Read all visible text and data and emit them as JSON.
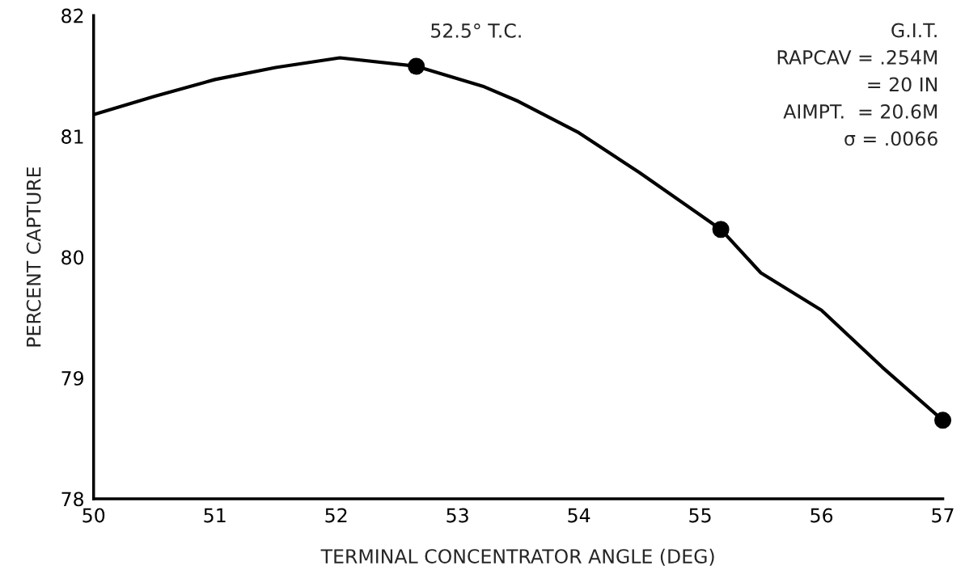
{
  "chart_data": {
    "type": "line",
    "xlabel": "TERMINAL CONCENTRATOR ANGLE (DEG)",
    "ylabel": "PERCENT CAPTURE",
    "xlim": [
      50,
      57
    ],
    "xticks": [
      50,
      51,
      52,
      53,
      54,
      55,
      56,
      57
    ],
    "ylim": [
      78,
      82
    ],
    "yticks": [
      78,
      79,
      80,
      81,
      82
    ],
    "grid": false,
    "series": [
      {
        "color": "#000000",
        "marker": "none",
        "x": [
          50,
          50.5,
          51,
          51.5,
          52.03,
          52.66,
          53.22,
          53.5,
          54,
          54.5,
          55.17,
          55.5,
          56,
          56.5,
          57
        ],
        "values": [
          81.18,
          81.33,
          81.47,
          81.57,
          81.65,
          81.58,
          81.41,
          81.29,
          81.03,
          80.7,
          80.23,
          79.87,
          79.56,
          79.09,
          78.65
        ]
      },
      {
        "type": "scatter",
        "color": "#000000",
        "marker": "circle",
        "x": [
          52.66,
          55.17,
          57
        ],
        "values": [
          81.58,
          80.23,
          78.65
        ]
      }
    ],
    "annotations": [
      {
        "text": "52.5° T.C.",
        "x": 52.66,
        "y": 81.58
      },
      "G.I.T.",
      "RAPCAV = .254M",
      "= 20 IN",
      "AIMPT.  = 20.6M",
      "σ = .0066"
    ]
  }
}
